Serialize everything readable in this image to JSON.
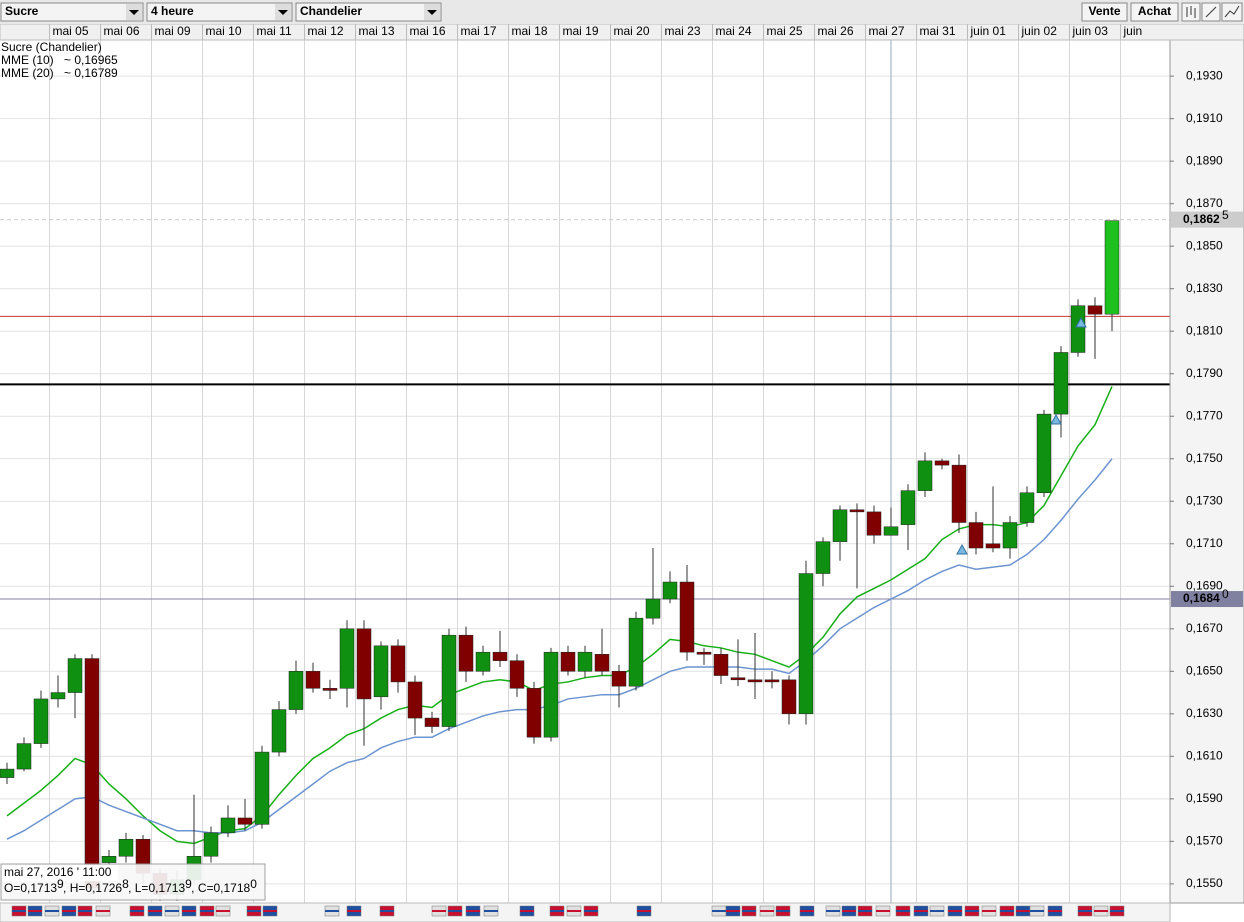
{
  "toolbar": {
    "instrument": "Sucre",
    "period": "4 heure",
    "chart_style": "Chandelier",
    "sell": "Vente",
    "buy": "Achat"
  },
  "chart_data": {
    "type": "candlestick",
    "title": "Sucre (Chandelier)",
    "categories": [
      null,
      null,
      null,
      "mai 05",
      null,
      null,
      "mai 06",
      null,
      null,
      "mai 09",
      null,
      null,
      "mai 10",
      null,
      null,
      "mai 11",
      null,
      null,
      "mai 12",
      null,
      null,
      "mai 13",
      null,
      null,
      "mai 16",
      null,
      null,
      "mai 17",
      null,
      null,
      "mai 18",
      null,
      null,
      "mai 19",
      null,
      null,
      "mai 20",
      null,
      null,
      "mai 23",
      null,
      null,
      "mai 24",
      null,
      null,
      "mai 25",
      null,
      null,
      "mai 26",
      null,
      null,
      "mai 27",
      null,
      null,
      "mai 31",
      null,
      null,
      "juin 01",
      null,
      null,
      "juin 02",
      null,
      null,
      "juin 03",
      null,
      null,
      "juin"
    ],
    "open": [
      0.16,
      0.1604,
      0.1616,
      0.1637,
      0.164,
      0.1656,
      0.156,
      0.1563,
      0.1571,
      0.1555,
      0.1545,
      0.1552,
      0.1563,
      0.1574,
      0.1581,
      0.1578,
      0.1612,
      0.1632,
      0.165,
      0.1642,
      0.1642,
      0.167,
      0.1638,
      0.1662,
      0.1645,
      0.1628,
      0.1624,
      0.1667,
      0.165,
      0.1659,
      0.1655,
      0.1642,
      0.1619,
      0.1659,
      0.165,
      0.1658,
      0.165,
      0.1643,
      0.1675,
      0.1684,
      0.1692,
      0.1659,
      0.1658,
      0.1647,
      0.1646,
      0.1646,
      0.1646,
      0.163,
      0.1696,
      0.1711,
      0.1726,
      0.1725,
      0.1714,
      0.1719,
      0.1735,
      0.1749,
      0.1747,
      0.172,
      0.171,
      0.1708,
      0.172,
      0.1734,
      0.1771,
      0.18,
      0.1822,
      0.1818,
      null
    ],
    "high": [
      0.1607,
      0.1619,
      0.1641,
      0.1648,
      0.1658,
      0.1658,
      0.1566,
      0.1574,
      0.1573,
      0.1557,
      0.1556,
      0.1592,
      0.1577,
      0.1587,
      0.159,
      0.1615,
      0.1636,
      0.1655,
      0.1654,
      0.1646,
      0.1674,
      0.1674,
      0.1664,
      0.1665,
      0.1648,
      0.1631,
      0.167,
      0.1671,
      0.1662,
      0.1669,
      0.1658,
      0.1645,
      0.1661,
      0.1662,
      0.1662,
      0.167,
      0.1653,
      0.1678,
      0.1708,
      0.1697,
      0.17,
      0.1661,
      0.1661,
      0.1665,
      0.1668,
      0.165,
      0.1648,
      0.1702,
      0.1713,
      0.1728,
      0.1729,
      0.1728,
      0.1727,
      0.1738,
      0.1753,
      0.175,
      0.1752,
      0.1725,
      0.1737,
      0.1723,
      0.1737,
      0.1773,
      0.1803,
      0.1825,
      0.1826,
      0.1862,
      null
    ],
    "low": [
      0.1597,
      0.1603,
      0.1614,
      0.1633,
      0.1628,
      0.1545,
      0.1555,
      0.156,
      0.155,
      0.1542,
      0.1542,
      0.155,
      0.156,
      0.1572,
      0.1575,
      0.1576,
      0.161,
      0.163,
      0.164,
      0.1637,
      0.1633,
      0.1615,
      0.1632,
      0.164,
      0.162,
      0.1621,
      0.1622,
      0.1645,
      0.1648,
      0.1652,
      0.1638,
      0.1616,
      0.1617,
      0.1648,
      0.1647,
      0.1648,
      0.1633,
      0.1641,
      0.1672,
      0.1682,
      0.1655,
      0.1653,
      0.1644,
      0.1643,
      0.1637,
      0.1642,
      0.1625,
      0.1625,
      0.169,
      0.1702,
      0.1689,
      0.171,
      0.1714,
      0.1707,
      0.1732,
      0.1745,
      0.1715,
      0.1705,
      0.1706,
      0.1703,
      0.1718,
      0.1732,
      0.176,
      0.1798,
      0.1797,
      0.181,
      null
    ],
    "close": [
      0.1604,
      0.1616,
      0.1637,
      0.164,
      0.1656,
      0.1548,
      0.1563,
      0.1571,
      0.1555,
      0.1545,
      0.1552,
      0.1563,
      0.1574,
      0.1581,
      0.1578,
      0.1612,
      0.1632,
      0.165,
      0.1642,
      0.1641,
      0.167,
      0.1637,
      0.1662,
      0.1645,
      0.1628,
      0.1624,
      0.1667,
      0.165,
      0.1659,
      0.1655,
      0.1642,
      0.1619,
      0.1659,
      0.165,
      0.1659,
      0.165,
      0.1643,
      0.1675,
      0.1684,
      0.1692,
      0.1659,
      0.1658,
      0.1648,
      0.1646,
      0.1645,
      0.1645,
      0.163,
      0.1696,
      0.1711,
      0.1726,
      0.1725,
      0.1714,
      0.1718,
      0.1735,
      0.1749,
      0.1747,
      0.172,
      0.1708,
      0.1708,
      0.172,
      0.1734,
      0.1771,
      0.18,
      0.1822,
      0.1818,
      0.1862,
      null
    ],
    "up_color": "#109010",
    "down_color": "#800000",
    "last_color": "#1ec01e",
    "series": [
      {
        "name": "MME (10)",
        "legend_value": "~ 0,16965",
        "color": "#16b016",
        "values": [
          0.1582,
          0.1588,
          0.1594,
          0.1601,
          0.1609,
          0.1606,
          0.1597,
          0.159,
          0.1582,
          0.1575,
          0.157,
          0.1569,
          0.1572,
          0.1575,
          0.1576,
          0.1582,
          0.1592,
          0.1601,
          0.1609,
          0.1614,
          0.162,
          0.1623,
          0.1628,
          0.1632,
          0.1634,
          0.1633,
          0.1639,
          0.1642,
          0.1645,
          0.1646,
          0.1645,
          0.1641,
          0.1644,
          0.1645,
          0.1647,
          0.1648,
          0.1648,
          0.1652,
          0.1658,
          0.1665,
          0.1664,
          0.1662,
          0.1661,
          0.1659,
          0.1658,
          0.1655,
          0.1652,
          0.1658,
          0.1666,
          0.1677,
          0.1685,
          0.1689,
          0.1693,
          0.1698,
          0.1703,
          0.1712,
          0.1717,
          0.1719,
          0.1719,
          0.1718,
          0.172,
          0.1728,
          0.1742,
          0.1756,
          0.1766,
          0.1784,
          null
        ]
      },
      {
        "name": "MME (20)",
        "legend_value": "~ 0,16789",
        "color": "#6c94d0",
        "values": [
          0.1571,
          0.1575,
          0.158,
          0.1585,
          0.159,
          0.1591,
          0.1587,
          0.1584,
          0.1581,
          0.1578,
          0.1575,
          0.1575,
          0.1574,
          0.1574,
          0.1575,
          0.1579,
          0.1585,
          0.1591,
          0.1597,
          0.1603,
          0.1607,
          0.1609,
          0.1614,
          0.1617,
          0.1619,
          0.1619,
          0.1623,
          0.1626,
          0.1629,
          0.1631,
          0.1632,
          0.1632,
          0.1634,
          0.1637,
          0.1638,
          0.1639,
          0.1639,
          0.1642,
          0.1646,
          0.165,
          0.1652,
          0.1652,
          0.1652,
          0.1652,
          0.1651,
          0.1651,
          0.1649,
          0.1655,
          0.1662,
          0.167,
          0.1675,
          0.168,
          0.1684,
          0.1688,
          0.1693,
          0.1697,
          0.17,
          0.1698,
          0.1699,
          0.17,
          0.1705,
          0.1712,
          0.1721,
          0.1731,
          0.174,
          0.175,
          null
        ]
      }
    ],
    "ylim": [
      0.1541,
      0.1947
    ],
    "yticks": [
      {
        "value": 0.193,
        "label": "0,1930"
      },
      {
        "value": 0.191,
        "label": "0,1910"
      },
      {
        "value": 0.189,
        "label": "0,1890"
      },
      {
        "value": 0.187,
        "label": "0,1870"
      },
      {
        "value": 0.185,
        "label": "0,1850"
      },
      {
        "value": 0.183,
        "label": "0,1830"
      },
      {
        "value": 0.181,
        "label": "0,1810"
      },
      {
        "value": 0.179,
        "label": "0,1790"
      },
      {
        "value": 0.177,
        "label": "0,1770"
      },
      {
        "value": 0.175,
        "label": "0,1750"
      },
      {
        "value": 0.173,
        "label": "0,1730"
      },
      {
        "value": 0.171,
        "label": "0,1710"
      },
      {
        "value": 0.169,
        "label": "0,1690"
      },
      {
        "value": 0.167,
        "label": "0,1670"
      },
      {
        "value": 0.165,
        "label": "0,1650"
      },
      {
        "value": 0.163,
        "label": "0,1630"
      },
      {
        "value": 0.161,
        "label": "0,1610"
      },
      {
        "value": 0.159,
        "label": "0,1590"
      },
      {
        "value": 0.157,
        "label": "0,1570"
      },
      {
        "value": 0.155,
        "label": "0,1550"
      }
    ],
    "grid": true,
    "price_markers": [
      {
        "value": 0.18625,
        "label": "0,1862",
        "digit": "5",
        "color": "#cccccc"
      },
      {
        "value": 0.1684,
        "label": "0,1684",
        "digit": "0",
        "color": "#8080a0"
      }
    ],
    "hlines": [
      {
        "value": 0.1817,
        "color": "#cc3333",
        "width": 1
      },
      {
        "value": 0.1785,
        "color": "#000000",
        "width": 2
      }
    ],
    "crosshair_index": 52,
    "tooltip": {
      "date": "mai 27, 2016 ' 11:00",
      "items": [
        {
          "text": "O=0,1713",
          "digit": "9"
        },
        {
          "text": ", H=0,1726",
          "digit": "8"
        },
        {
          "text": ", L=0,1713",
          "digit": "9"
        },
        {
          "text": ", C=0,1718",
          "digit": "0"
        }
      ]
    }
  }
}
